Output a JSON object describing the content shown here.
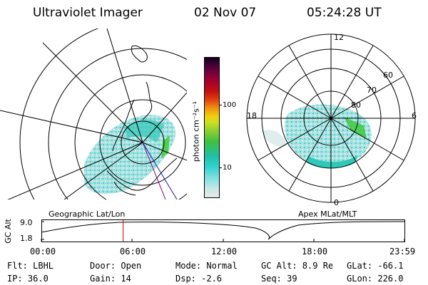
{
  "header": {
    "instrument": "Ultraviolet Imager",
    "date": "02 Nov 07",
    "time": "05:24:28 UT"
  },
  "geo_panel": {
    "label": "Geographic Lat/Lon"
  },
  "apex_panel": {
    "label": "Apex MLat/MLT",
    "mlt_labels": [
      "12",
      "18",
      "6",
      "0"
    ],
    "lat_labels": [
      "60",
      "70",
      "80"
    ]
  },
  "colorbar": {
    "label": "photon cm⁻²s⁻¹",
    "ticks": [
      "100",
      "10"
    ],
    "colors": [
      "#e8e8e8",
      "#c8e8e8",
      "#80e0e0",
      "#30d0d0",
      "#20c0a0",
      "#40c040",
      "#90d030",
      "#d0e020",
      "#f0d010",
      "#f09010",
      "#e04010",
      "#c01010",
      "#a00030",
      "#600040",
      "#300050",
      "#100020"
    ]
  },
  "altitude_plot": {
    "axis_label": "GC Alt",
    "y_ticks": [
      "9.0",
      "1.8"
    ],
    "x_ticks": [
      "00:00",
      "06:00",
      "12:00",
      "18:00",
      "23:59"
    ],
    "marker_time": "05:24",
    "orbit_color": "#000000",
    "marker_color": "#cc0000"
  },
  "status": {
    "filter": "Flt: LBHL",
    "ip": "IP: 36.0",
    "door": "Door: Open",
    "gain": "Gain: 14",
    "mode": "Mode: Normal",
    "dsp": "Dsp:    -2.6",
    "gc_alt": "GC Alt: 8.9 Re",
    "seq": "Seq: 39",
    "glat": "GLat: -66.1",
    "glon": "GLon: 226.0"
  }
}
